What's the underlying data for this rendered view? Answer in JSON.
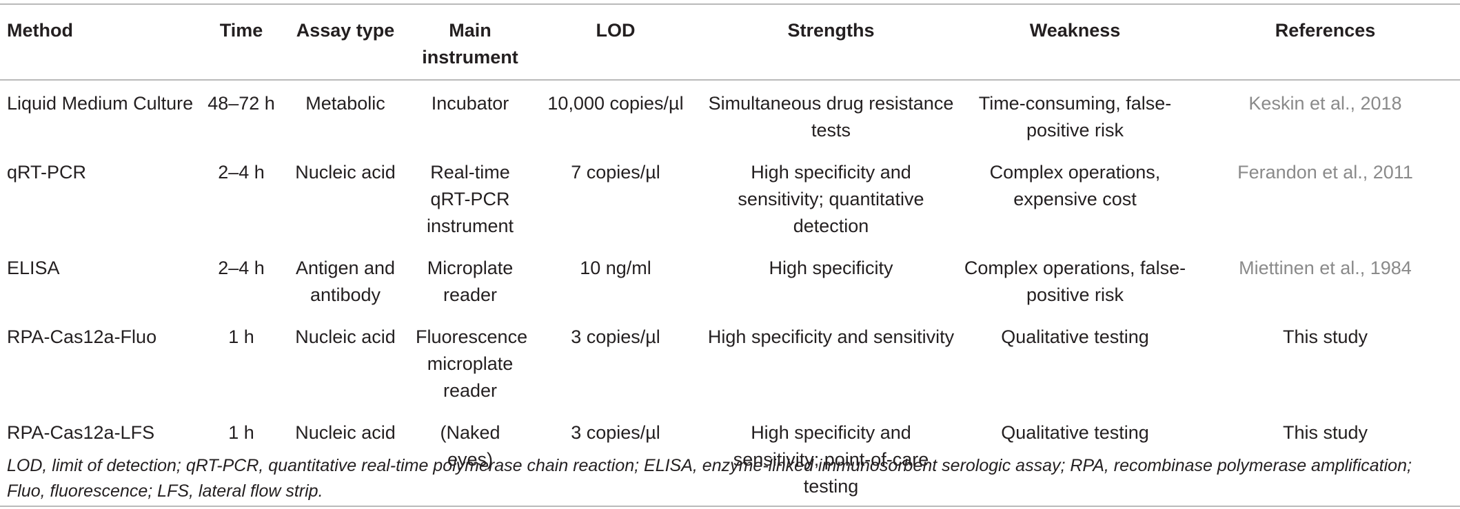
{
  "table": {
    "headers": {
      "method": "Method",
      "time": "Time",
      "assay_type": "Assay type",
      "main_instrument": "Main instrument",
      "lod": "LOD",
      "strengths": "Strengths",
      "weakness": "Weakness",
      "references": "References"
    },
    "rows": [
      {
        "method": "Liquid Medium Culture",
        "time": "48–72 h",
        "assay_type": "Metabolic",
        "main_instrument": "Incubator",
        "lod": "10,000 copies/µl",
        "strengths": "Simultaneous drug resistance tests",
        "weakness": "Time-consuming, false-positive risk",
        "references": "Keskin et al., 2018"
      },
      {
        "method": "qRT-PCR",
        "time": "2–4 h",
        "assay_type": "Nucleic acid",
        "main_instrument": "Real-time qRT-PCR instrument",
        "lod": "7 copies/µl",
        "strengths": "High specificity and sensitivity; quantitative detection",
        "weakness": "Complex operations, expensive cost",
        "references": "Ferandon et al., 2011"
      },
      {
        "method": "ELISA",
        "time": "2–4 h",
        "assay_type": "Antigen and antibody",
        "main_instrument": "Microplate reader",
        "lod": "10 ng/ml",
        "strengths": "High specificity",
        "weakness": "Complex operations, false-positive risk",
        "references": "Miettinen et al., 1984"
      },
      {
        "method": "RPA-Cas12a-Fluo",
        "time": "1 h",
        "assay_type": "Nucleic acid",
        "main_instrument": "Fluorescence microplate reader",
        "lod": "3 copies/µl",
        "strengths": "High specificity and sensitivity",
        "weakness": "Qualitative testing",
        "references": "This study"
      },
      {
        "method": "RPA-Cas12a-LFS",
        "time": "1 h",
        "assay_type": "Nucleic acid",
        "main_instrument": "(Naked eyes)",
        "lod": "3 copies/µl",
        "strengths": "High specificity and sensitivity; point-of-care testing",
        "weakness": "Qualitative testing",
        "references": "This study"
      }
    ]
  },
  "footnote": "LOD, limit of detection; qRT-PCR, quantitative real-time polymerase chain reaction; ELISA, enzyme-linked immunosorbent serologic assay; RPA, recombinase polymerase amplification; Fluo, fluorescence; LFS, lateral flow strip."
}
